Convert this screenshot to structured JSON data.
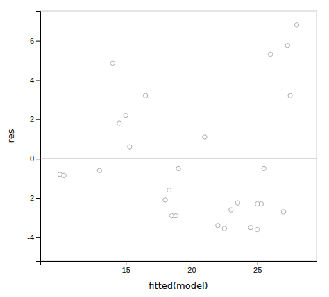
{
  "chart_data": {
    "type": "scatter",
    "x": [
      10,
      10.3,
      13,
      14,
      14.5,
      15,
      15.3,
      16.5,
      18,
      18.3,
      18.5,
      18.8,
      19,
      21,
      22,
      22.5,
      23,
      23.5,
      24.5,
      25,
      25,
      25.3,
      25.5,
      26,
      27,
      27.3,
      27.5,
      28
    ],
    "values": [
      -0.8,
      -0.85,
      -0.6,
      4.85,
      1.8,
      2.2,
      0.6,
      3.2,
      -2.1,
      -1.6,
      -2.9,
      -2.9,
      -0.5,
      1.1,
      -3.4,
      -3.55,
      -2.6,
      -2.25,
      -3.5,
      -3.6,
      -2.3,
      -2.3,
      -0.5,
      5.3,
      -2.7,
      5.75,
      3.2,
      6.8
    ],
    "xlabel": "fitted(model)",
    "ylabel": "res",
    "xlim": [
      8.5,
      29.5
    ],
    "ylim": [
      -5.2,
      7.5
    ],
    "xticks": [
      15,
      20,
      25
    ],
    "yticks": [
      -4,
      -2,
      0,
      2,
      4,
      6
    ],
    "color": "#aaaaaa",
    "marker": "open",
    "reference_line": {
      "y": 0,
      "color": "#888888"
    },
    "grid": false
  }
}
